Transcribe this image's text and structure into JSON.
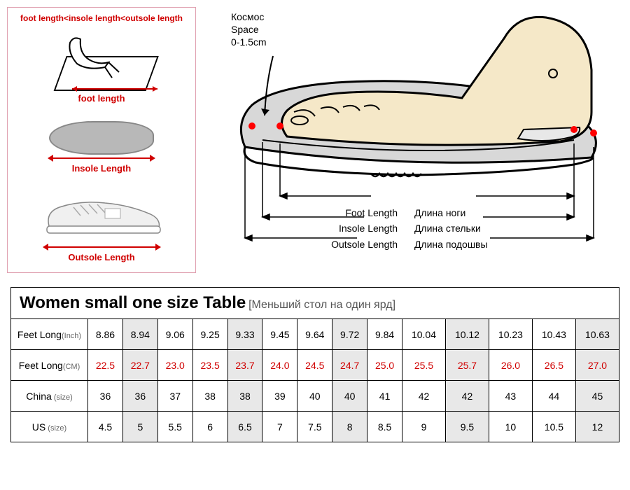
{
  "left_panel": {
    "header": "foot length<insole length<outsole length",
    "foot_label": "foot length",
    "insole_label": "Insole Length",
    "outsole_label": "Outsole Length",
    "border_color": "#e0a0b0",
    "label_color": "#d00000"
  },
  "right_panel": {
    "space_ru": "Космос",
    "space_en": "Space",
    "space_range": "0-1.5cm",
    "foot_en": "Foot Length",
    "foot_ru": "Длина ноги",
    "insole_en": "Insole Length",
    "insole_ru": "Длина стельки",
    "outsole_en": "Outsole Length",
    "outsole_ru": "Длина подошвы",
    "foot_fill": "#f5e8c8",
    "sole_fill": "#d8d8d8",
    "marker_color": "#ff0000",
    "line_color": "#000000"
  },
  "table": {
    "title": "Women small one size Table",
    "subtitle": "[Меньший стол на один ярд]",
    "title_fontsize": 24,
    "subtitle_fontsize": 16,
    "shade_color": "#e8e8e8",
    "cm_color": "#d00000",
    "border_color": "#000000",
    "columns_shaded": [
      false,
      true,
      false,
      false,
      true,
      false,
      false,
      true,
      false,
      false,
      true,
      false,
      false,
      true
    ],
    "rows": [
      {
        "label": "Feet Long",
        "sublabel": "(Inch)",
        "red": false,
        "values": [
          "8.86",
          "8.94",
          "9.06",
          "9.25",
          "9.33",
          "9.45",
          "9.64",
          "9.72",
          "9.84",
          "10.04",
          "10.12",
          "10.23",
          "10.43",
          "10.63"
        ]
      },
      {
        "label": "Feet Long",
        "sublabel": "(CM)",
        "red": true,
        "values": [
          "22.5",
          "22.7",
          "23.0",
          "23.5",
          "23.7",
          "24.0",
          "24.5",
          "24.7",
          "25.0",
          "25.5",
          "25.7",
          "26.0",
          "26.5",
          "27.0"
        ]
      },
      {
        "label": "China",
        "sublabel": " (size)",
        "red": false,
        "values": [
          "36",
          "36",
          "37",
          "38",
          "38",
          "39",
          "40",
          "40",
          "41",
          "42",
          "42",
          "43",
          "44",
          "45"
        ]
      },
      {
        "label": "US",
        "sublabel": " (size)",
        "red": false,
        "values": [
          "4.5",
          "5",
          "5.5",
          "6",
          "6.5",
          "7",
          "7.5",
          "8",
          "8.5",
          "9",
          "9.5",
          "10",
          "10.5",
          "12"
        ]
      }
    ]
  }
}
